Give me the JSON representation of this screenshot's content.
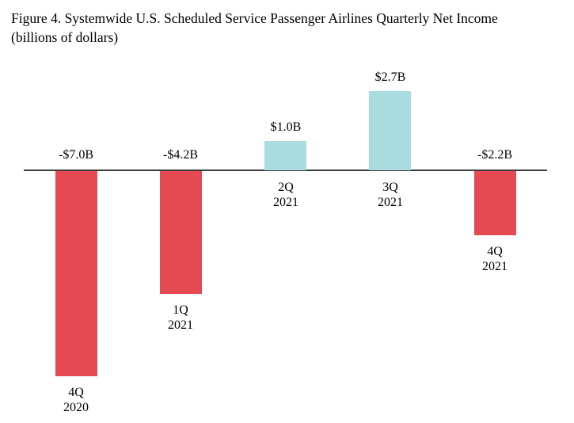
{
  "figure_title": {
    "line1": "Figure 4. Systemwide U.S. Scheduled Service Passenger Airlines Quarterly Net Income",
    "line2": "(billions of dollars)"
  },
  "chart_data": {
    "type": "bar",
    "title": "Figure 4. Systemwide U.S. Scheduled Service Passenger Airlines Quarterly Net Income (billions of dollars)",
    "units": "billions of dollars",
    "categories": [
      "4Q 2020",
      "1Q 2021",
      "2Q 2021",
      "3Q 2021",
      "4Q 2021"
    ],
    "category_lines": [
      [
        "4Q",
        "2020"
      ],
      [
        "1Q",
        "2021"
      ],
      [
        "2Q",
        "2021"
      ],
      [
        "3Q",
        "2021"
      ],
      [
        "4Q",
        "2021"
      ]
    ],
    "values": [
      -7.0,
      -4.2,
      1.0,
      2.7,
      -2.2
    ],
    "data_labels": [
      "-$7.0B",
      "-$4.2B",
      "$1.0B",
      "$2.7B",
      "-$2.2B"
    ],
    "ylim": [
      -7.5,
      3.5
    ],
    "grid": false,
    "legend": false,
    "axes": "zero baseline only, no ticks, no y-axis",
    "colors": {
      "positive_bar": "#a8dce0",
      "negative_bar": "#e54a52",
      "baseline": "#3a3a3a",
      "text": "#000000"
    }
  }
}
